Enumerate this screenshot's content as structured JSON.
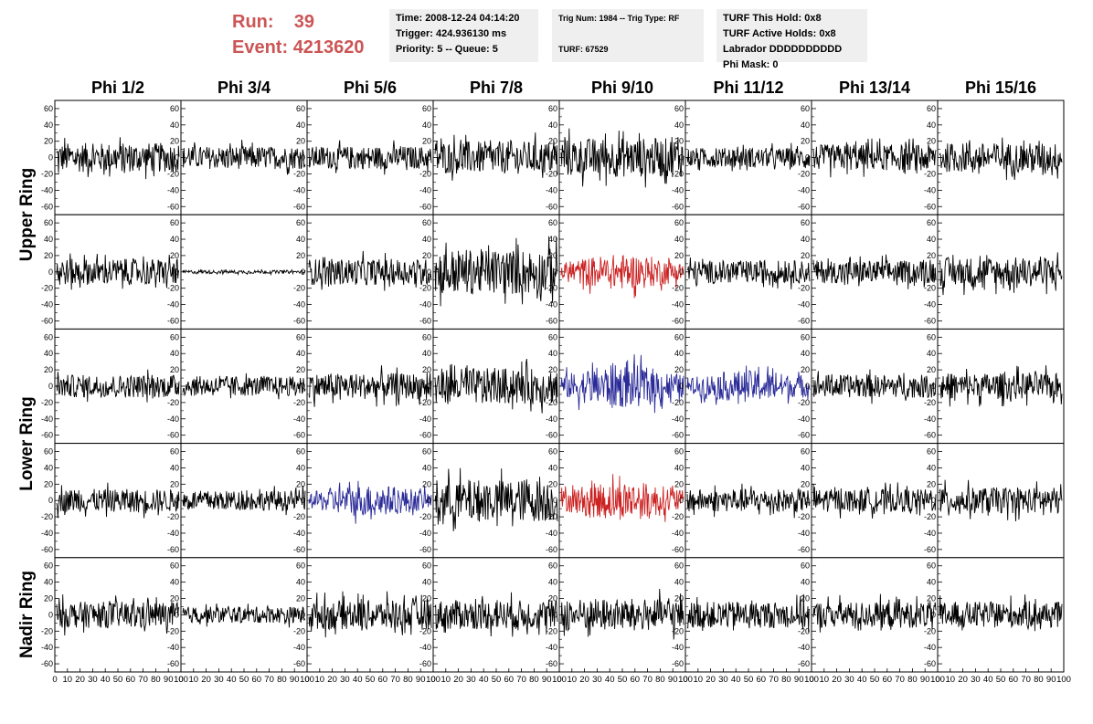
{
  "header": {
    "run_label": "Run:",
    "run_value": "39",
    "event_label": "Event:",
    "event_value": "4213620",
    "time_box": [
      "Time: 2008-12-24 04:14:20",
      "Trigger: 424.936130 ms",
      "Priority: 5 -- Queue: 5"
    ],
    "trig_box": [
      "Trig Num: 1984 -- Trig Type: RF",
      "",
      "TURF: 67529"
    ],
    "turf_box": [
      "TURF This Hold: 0x8",
      "TURF Active Holds: 0x8",
      "Labrador DDDDDDDDDD",
      "Phi Mask: 0"
    ]
  },
  "chart_data": {
    "type": "line",
    "columns": [
      "Phi 1/2",
      "Phi 3/4",
      "Phi 5/6",
      "Phi 7/8",
      "Phi 9/10",
      "Phi 11/12",
      "Phi 13/14",
      "Phi 15/16"
    ],
    "rows": [
      "Upper Ring",
      "Upper Ring",
      "Lower Ring",
      "Lower Ring",
      "Nadir Ring"
    ],
    "row_labels": [
      "Upper Ring",
      "Lower Ring",
      "Nadir Ring"
    ],
    "ylim": [
      -70,
      70
    ],
    "yticks": [
      -60,
      -40,
      -20,
      0,
      20,
      40,
      60
    ],
    "xlim": [
      0,
      100
    ],
    "xticks": [
      0,
      10,
      20,
      30,
      40,
      50,
      60,
      70,
      80,
      90,
      100
    ],
    "trace_colors": {
      "normal": "#000000",
      "triggered_red": "#cc2222",
      "triggered_blue": "#2a2a99"
    },
    "panels": [
      [
        {
          "amp": 18,
          "color": "normal"
        },
        {
          "amp": 14,
          "color": "normal"
        },
        {
          "amp": 14,
          "color": "normal"
        },
        {
          "amp": 20,
          "color": "normal"
        },
        {
          "amp": 24,
          "color": "normal"
        },
        {
          "amp": 12,
          "color": "normal"
        },
        {
          "amp": 16,
          "color": "normal"
        },
        {
          "amp": 18,
          "color": "normal"
        }
      ],
      [
        {
          "amp": 16,
          "color": "normal"
        },
        {
          "amp": 2,
          "color": "normal"
        },
        {
          "amp": 16,
          "color": "normal"
        },
        {
          "amp": 28,
          "color": "normal"
        },
        {
          "amp": 18,
          "color": "triggered_red"
        },
        {
          "amp": 14,
          "color": "normal"
        },
        {
          "amp": 14,
          "color": "normal"
        },
        {
          "amp": 18,
          "color": "normal"
        }
      ],
      [
        {
          "amp": 14,
          "color": "normal"
        },
        {
          "amp": 12,
          "color": "normal"
        },
        {
          "amp": 16,
          "color": "normal"
        },
        {
          "amp": 22,
          "color": "normal"
        },
        {
          "amp": 22,
          "color": "triggered_blue"
        },
        {
          "amp": 16,
          "color": "triggered_blue"
        },
        {
          "amp": 14,
          "color": "normal"
        },
        {
          "amp": 16,
          "color": "normal"
        }
      ],
      [
        {
          "amp": 14,
          "color": "normal"
        },
        {
          "amp": 12,
          "color": "normal"
        },
        {
          "amp": 16,
          "color": "triggered_blue"
        },
        {
          "amp": 26,
          "color": "normal"
        },
        {
          "amp": 20,
          "color": "triggered_red"
        },
        {
          "amp": 14,
          "color": "normal"
        },
        {
          "amp": 14,
          "color": "normal"
        },
        {
          "amp": 16,
          "color": "normal"
        }
      ],
      [
        {
          "amp": 16,
          "color": "normal"
        },
        {
          "amp": 10,
          "color": "normal"
        },
        {
          "amp": 18,
          "color": "normal"
        },
        {
          "amp": 18,
          "color": "normal"
        },
        {
          "amp": 20,
          "color": "normal"
        },
        {
          "amp": 16,
          "color": "normal"
        },
        {
          "amp": 16,
          "color": "normal"
        },
        {
          "amp": 16,
          "color": "normal"
        }
      ]
    ]
  }
}
